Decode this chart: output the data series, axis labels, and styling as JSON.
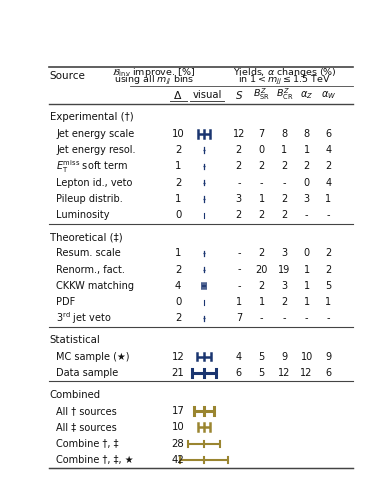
{
  "sections": [
    {
      "header": "Experimental (†)",
      "rows": [
        {
          "source": "Jet energy scale",
          "delta": "10",
          "bar_val": 10,
          "bar_color": "#1a3570",
          "S": "12",
          "BSR": "7",
          "BCR": "8",
          "aZ": "8",
          "aW": "6"
        },
        {
          "source": "Jet energy resol.",
          "delta": "2",
          "bar_val": 2,
          "bar_color": "#1a3570",
          "S": "2",
          "BSR": "0",
          "BCR": "1",
          "aZ": "1",
          "aW": "4"
        },
        {
          "source": "E_T^miss soft term",
          "delta": "1",
          "bar_val": 1,
          "bar_color": "#1a3570",
          "S": "2",
          "BSR": "2",
          "BCR": "2",
          "aZ": "2",
          "aW": "2"
        },
        {
          "source": "Lepton id., veto",
          "delta": "2",
          "bar_val": 2,
          "bar_color": "#1a3570",
          "S": "-",
          "BSR": "-",
          "BCR": "-",
          "aZ": "0",
          "aW": "4"
        },
        {
          "source": "Pileup distrib.",
          "delta": "1",
          "bar_val": 1,
          "bar_color": "#1a3570",
          "S": "3",
          "BSR": "1",
          "BCR": "2",
          "aZ": "3",
          "aW": "1"
        },
        {
          "source": "Luminosity",
          "delta": "0",
          "bar_val": 0,
          "bar_color": "#1a3570",
          "S": "2",
          "BSR": "2",
          "BCR": "2",
          "aZ": "-",
          "aW": "-"
        }
      ]
    },
    {
      "header": "Theoretical (‡)",
      "rows": [
        {
          "source": "Resum. scale",
          "delta": "1",
          "bar_val": 1,
          "bar_color": "#1a3570",
          "S": "-",
          "BSR": "2",
          "BCR": "3",
          "aZ": "0",
          "aW": "2"
        },
        {
          "source": "Renorm., fact.",
          "delta": "2",
          "bar_val": 2,
          "bar_color": "#1a3570",
          "S": "-",
          "BSR": "20",
          "BCR": "19",
          "aZ": "1",
          "aW": "2"
        },
        {
          "source": "CKKW matching",
          "delta": "4",
          "bar_val": 4,
          "bar_color": "#1a3570",
          "S": "-",
          "BSR": "2",
          "BCR": "3",
          "aZ": "1",
          "aW": "5"
        },
        {
          "source": "PDF",
          "delta": "0",
          "bar_val": 0,
          "bar_color": "#1a3570",
          "S": "1",
          "BSR": "1",
          "BCR": "2",
          "aZ": "1",
          "aW": "1"
        },
        {
          "source": "3rd jet veto",
          "delta": "2",
          "bar_val": 2,
          "bar_color": "#1a3570",
          "S": "7",
          "BSR": "-",
          "BCR": "-",
          "aZ": "-",
          "aW": "-"
        }
      ]
    },
    {
      "header": "Statistical",
      "rows": [
        {
          "source": "MC sample (★)",
          "delta": "12",
          "bar_val": 12,
          "bar_color": "#1a3570",
          "S": "4",
          "BSR": "5",
          "BCR": "9",
          "aZ": "10",
          "aW": "9"
        },
        {
          "source": "Data sample",
          "delta": "21",
          "bar_val": 21,
          "bar_color": "#1a3570",
          "S": "6",
          "BSR": "5",
          "BCR": "12",
          "aZ": "12",
          "aW": "6"
        }
      ]
    },
    {
      "header": "Combined",
      "rows": [
        {
          "source": "All † sources",
          "delta": "17",
          "bar_val": 17,
          "bar_color": "#9a8530"
        },
        {
          "source": "All ‡ sources",
          "delta": "10",
          "bar_val": 10,
          "bar_color": "#9a8530"
        },
        {
          "source": "Combine †, ‡",
          "delta": "28",
          "bar_val": 28,
          "bar_color": "#9a8530"
        },
        {
          "source": "Combine †, ‡, ★",
          "delta": "42",
          "bar_val": 42,
          "bar_color": "#9a8530"
        }
      ]
    }
  ],
  "bar_max": 42,
  "text_color": "#111111",
  "line_color": "#444444",
  "fig_bg": "#ffffff"
}
